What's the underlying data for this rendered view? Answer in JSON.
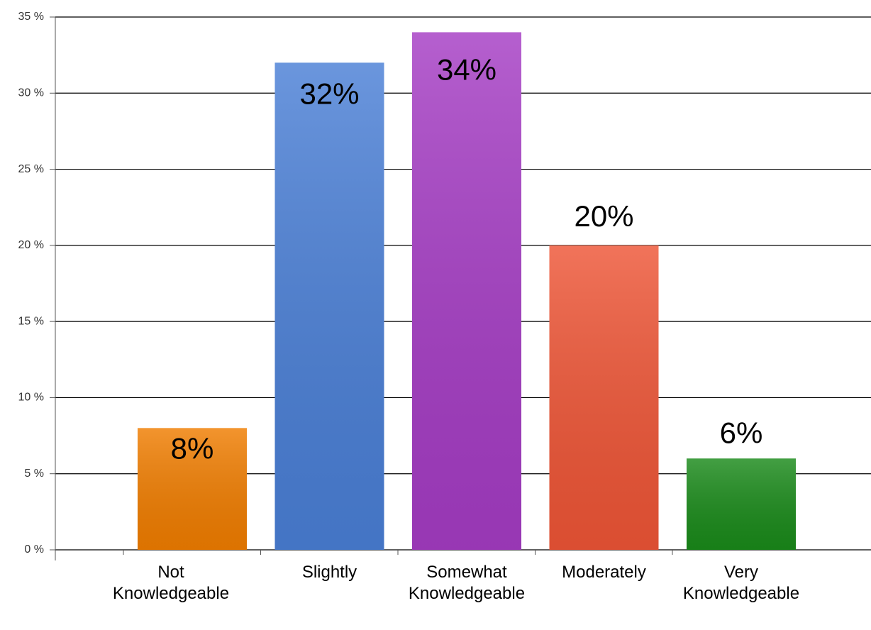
{
  "chart_data": {
    "type": "bar",
    "categories": [
      "Not Knowledgeable",
      "Slightly",
      "Somewhat Knowledgeable",
      "Moderately",
      "Very Knowledgeable"
    ],
    "values": [
      8,
      32,
      34,
      20,
      6
    ],
    "value_labels": [
      "8%",
      "32%",
      "34%",
      "20%",
      "6%"
    ],
    "colors": [
      "#f07d00",
      "#4a7fd6",
      "#a53cc4",
      "#ee5536",
      "#1a8a1a"
    ],
    "ylim": [
      0,
      35
    ],
    "yticks": [
      {
        "value": 0,
        "label": "0 %"
      },
      {
        "value": 5,
        "label": "5 %"
      },
      {
        "value": 10,
        "label": "10 %"
      },
      {
        "value": 15,
        "label": "15 %"
      },
      {
        "value": 20,
        "label": "20 %"
      },
      {
        "value": 25,
        "label": "25 %"
      },
      {
        "value": 30,
        "label": "30 %"
      },
      {
        "value": 35,
        "label": "35 %"
      }
    ],
    "grid": true
  }
}
